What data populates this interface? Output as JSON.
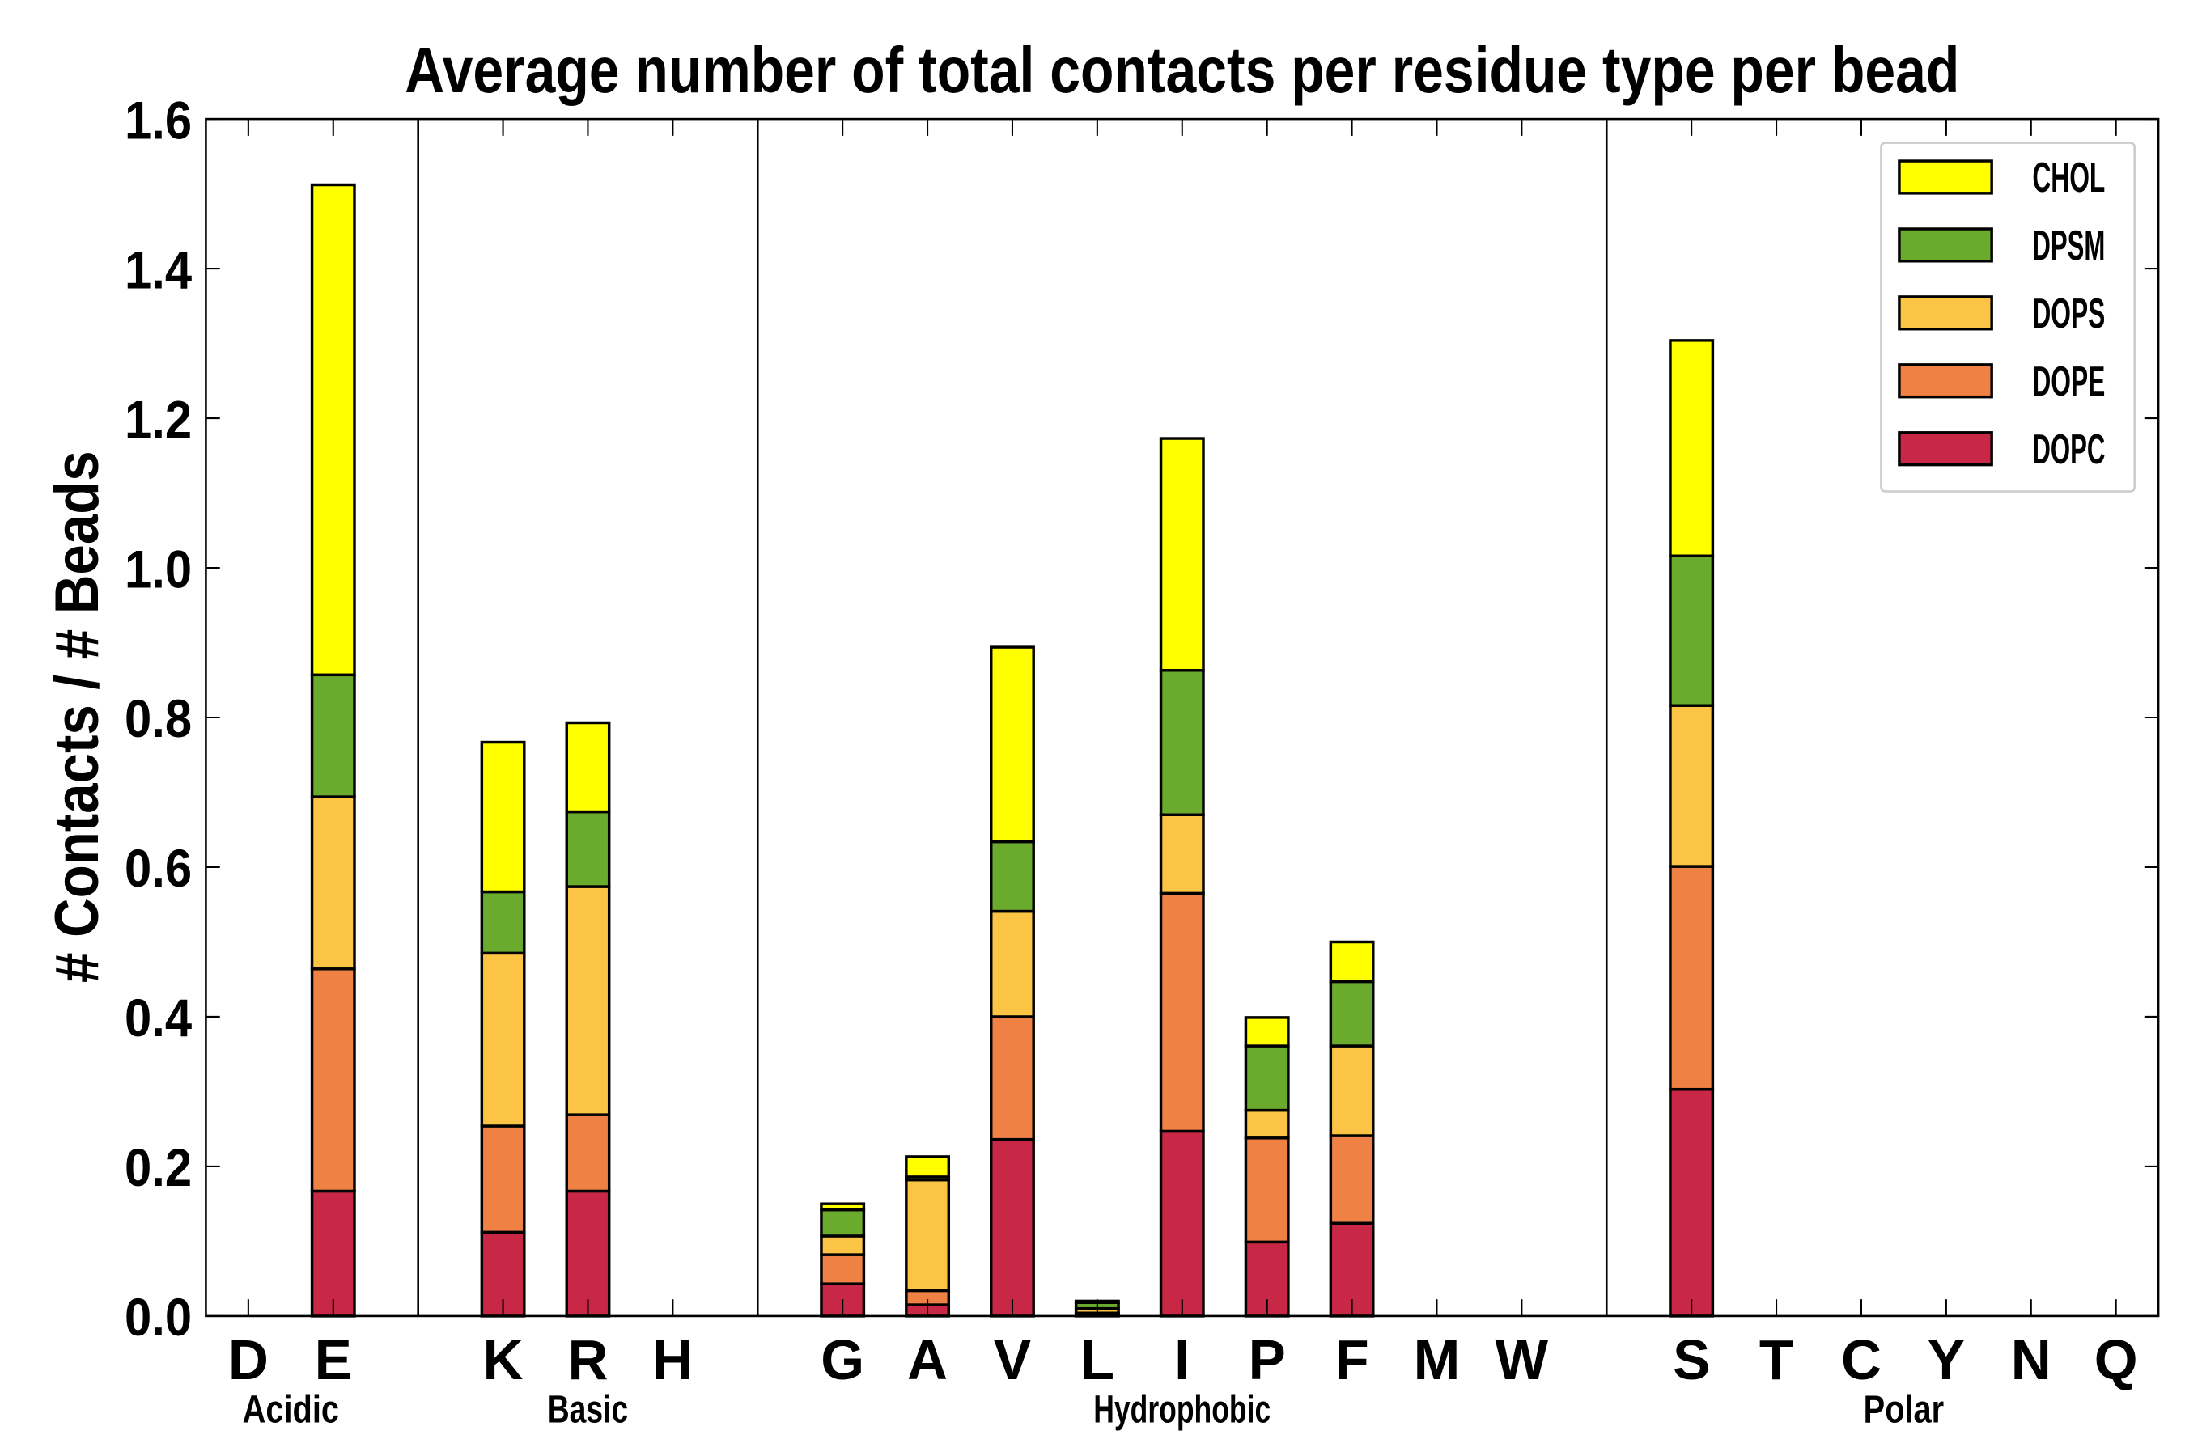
{
  "chart_data": {
    "type": "bar",
    "stacked": true,
    "title": "Average number of total contacts per residue type per bead",
    "xlabel": "",
    "ylabel": "# Contacts / # Beads",
    "ylim": [
      0,
      1.6
    ],
    "yticks": [
      "0.0",
      "0.2",
      "0.4",
      "0.6",
      "0.8",
      "1.0",
      "1.2",
      "1.4",
      "1.6"
    ],
    "grid": false,
    "legend_position": "top-right",
    "categories": [
      "D",
      "E",
      "",
      "K",
      "R",
      "H",
      "",
      "G",
      "A",
      "V",
      "L",
      "I",
      "P",
      "F",
      "M",
      "W",
      "",
      "S",
      "T",
      "C",
      "Y",
      "N",
      "Q"
    ],
    "groups": [
      {
        "label": "Acidic",
        "from": 0,
        "to": 1
      },
      {
        "label": "Basic",
        "from": 3,
        "to": 5
      },
      {
        "label": "Hydrophobic",
        "from": 7,
        "to": 15
      },
      {
        "label": "Polar",
        "from": 17,
        "to": 22
      }
    ],
    "group_separators": [
      2,
      6,
      16
    ],
    "series": [
      {
        "name": "DOPC",
        "color": "#c82845",
        "values": [
          0,
          0.167,
          0,
          0.112,
          0.167,
          0,
          0,
          0.043,
          0.015,
          0.236,
          0.002,
          0.247,
          0.099,
          0.124,
          0,
          0,
          0,
          0.303,
          0,
          0,
          0,
          0,
          0
        ]
      },
      {
        "name": "DOPE",
        "color": "#ef8144",
        "values": [
          0,
          0.297,
          0,
          0.142,
          0.102,
          0,
          0,
          0.039,
          0.019,
          0.164,
          0.002,
          0.318,
          0.139,
          0.117,
          0,
          0,
          0,
          0.298,
          0,
          0,
          0,
          0,
          0
        ]
      },
      {
        "name": "DOPS",
        "color": "#fbc444",
        "values": [
          0,
          0.23,
          0,
          0.231,
          0.305,
          0,
          0,
          0.025,
          0.148,
          0.141,
          0.006,
          0.105,
          0.037,
          0.12,
          0,
          0,
          0,
          0.215,
          0,
          0,
          0,
          0,
          0
        ]
      },
      {
        "name": "DPSM",
        "color": "#6aaa2d",
        "values": [
          0,
          0.163,
          0,
          0.082,
          0.1,
          0,
          0,
          0.035,
          0.004,
          0.093,
          0.008,
          0.193,
          0.086,
          0.086,
          0,
          0,
          0,
          0.2,
          0,
          0,
          0,
          0,
          0
        ]
      },
      {
        "name": "CHOL",
        "color": "#ffff00",
        "values": [
          0,
          0.655,
          0,
          0.2,
          0.119,
          0,
          0,
          0.008,
          0.027,
          0.26,
          0.002,
          0.31,
          0.038,
          0.053,
          0,
          0,
          0,
          0.288,
          0,
          0,
          0,
          0,
          0
        ]
      }
    ],
    "legend_order": [
      "CHOL",
      "DPSM",
      "DOPS",
      "DOPE",
      "DOPC"
    ]
  }
}
